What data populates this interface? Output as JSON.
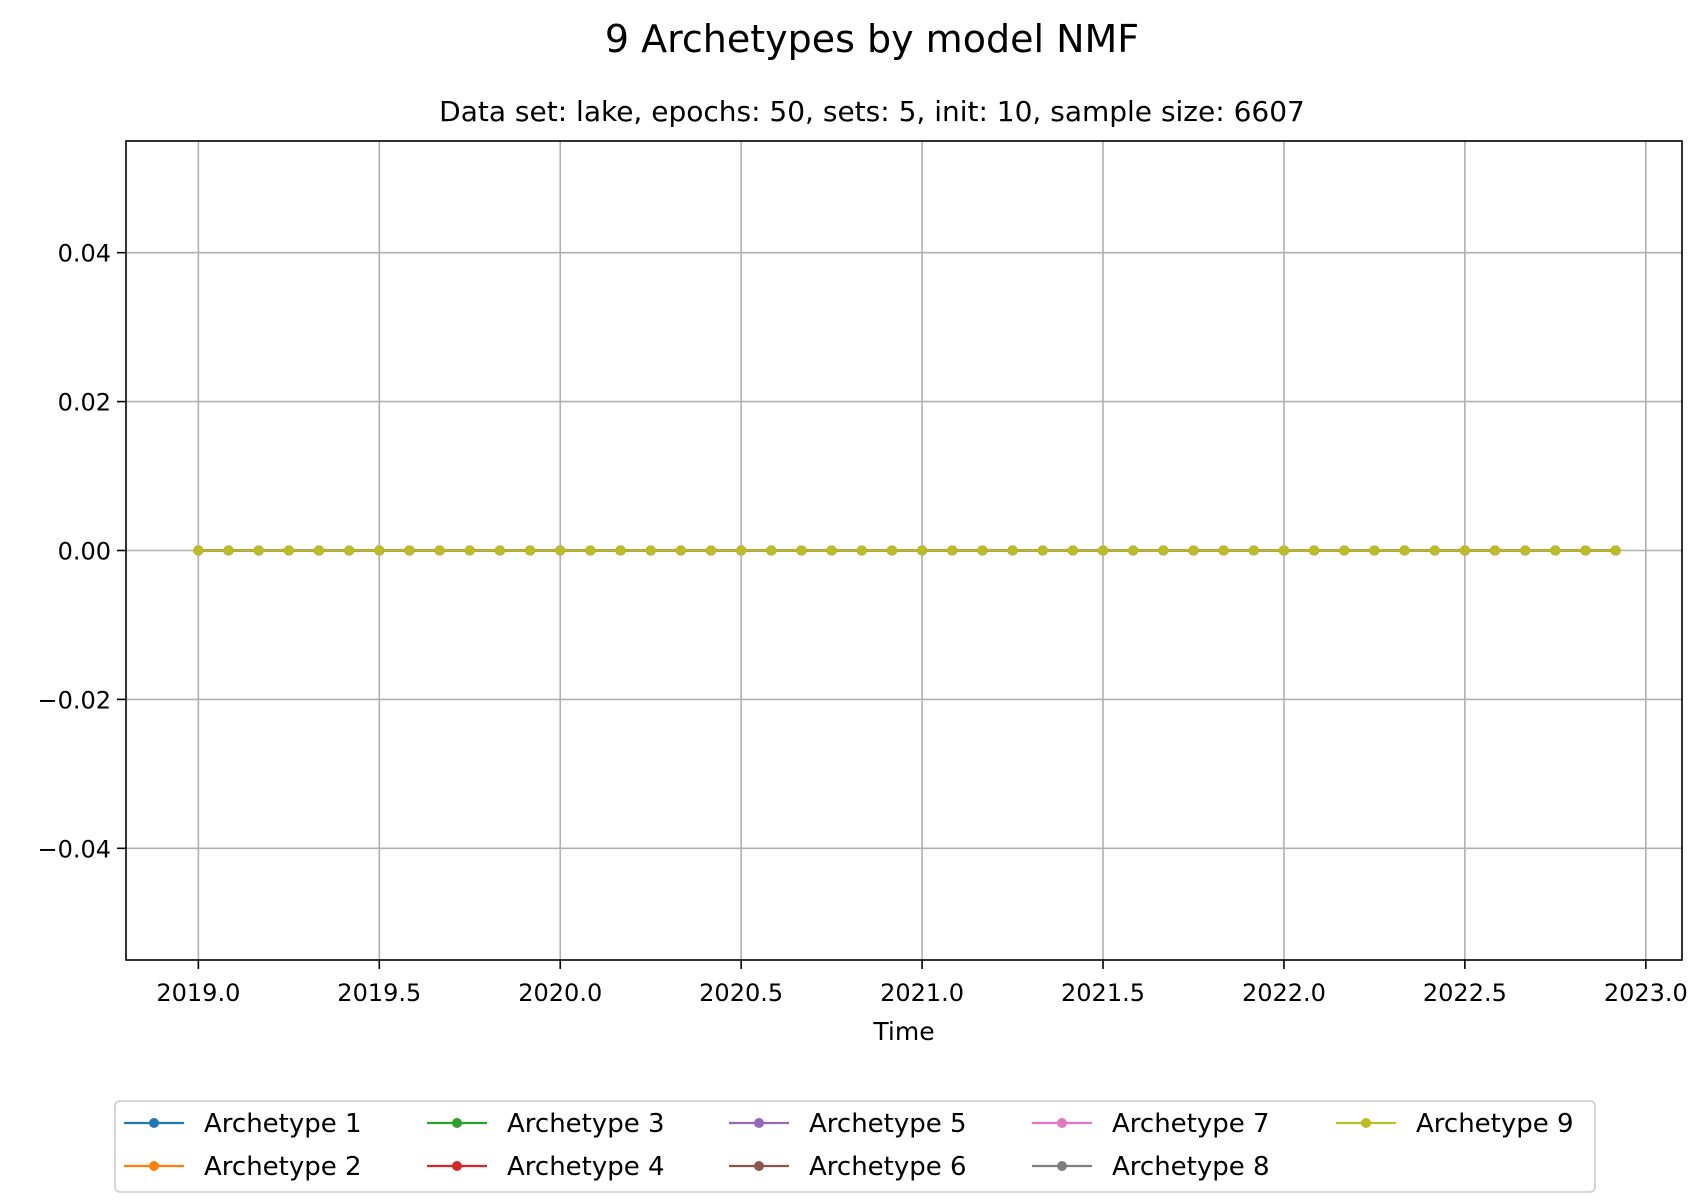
{
  "chart_data": {
    "type": "line",
    "title": "9 Archetypes by model NMF",
    "subtitle": "Data set: lake, epochs: 50, sets: 5, init: 10, sample size: 6607",
    "xlabel": "Time",
    "ylabel": "",
    "xlim": [
      2018.8,
      2023.1
    ],
    "ylim": [
      -0.055,
      0.055
    ],
    "grid": true,
    "legend_position": "bottom-center",
    "x_ticks": [
      2019.0,
      2019.5,
      2020.0,
      2020.5,
      2021.0,
      2021.5,
      2022.0,
      2022.5,
      2023.0
    ],
    "x_tick_labels": [
      "2019.0",
      "2019.5",
      "2020.0",
      "2020.5",
      "2021.0",
      "2021.5",
      "2022.0",
      "2022.5",
      "2023.0"
    ],
    "y_ticks": [
      -0.04,
      -0.02,
      0.0,
      0.02,
      0.04
    ],
    "y_tick_labels": [
      "−0.04",
      "−0.02",
      "0.00",
      "0.02",
      "0.04"
    ],
    "x": [
      2019.0,
      2019.0833,
      2019.1667,
      2019.25,
      2019.3333,
      2019.4167,
      2019.5,
      2019.5833,
      2019.6667,
      2019.75,
      2019.8333,
      2019.9167,
      2020.0,
      2020.0833,
      2020.1667,
      2020.25,
      2020.3333,
      2020.4167,
      2020.5,
      2020.5833,
      2020.6667,
      2020.75,
      2020.8333,
      2020.9167,
      2021.0,
      2021.0833,
      2021.1667,
      2021.25,
      2021.3333,
      2021.4167,
      2021.5,
      2021.5833,
      2021.6667,
      2021.75,
      2021.8333,
      2021.9167,
      2022.0,
      2022.0833,
      2022.1667,
      2022.25,
      2022.3333,
      2022.4167,
      2022.5,
      2022.5833,
      2022.6667,
      2022.75,
      2022.8333,
      2022.9167
    ],
    "series": [
      {
        "name": "Archetype 1",
        "color": "#1f77b4",
        "value": 0.0
      },
      {
        "name": "Archetype 2",
        "color": "#ff7f0e",
        "value": 0.0
      },
      {
        "name": "Archetype 3",
        "color": "#2ca02c",
        "value": 0.0
      },
      {
        "name": "Archetype 4",
        "color": "#d62728",
        "value": 0.0
      },
      {
        "name": "Archetype 5",
        "color": "#9467bd",
        "value": 0.0
      },
      {
        "name": "Archetype 6",
        "color": "#8c564b",
        "value": 0.0
      },
      {
        "name": "Archetype 7",
        "color": "#e377c2",
        "value": 0.0
      },
      {
        "name": "Archetype 8",
        "color": "#7f7f7f",
        "value": 0.0
      },
      {
        "name": "Archetype 9",
        "color": "#bcbd22",
        "value": 0.0
      }
    ]
  }
}
